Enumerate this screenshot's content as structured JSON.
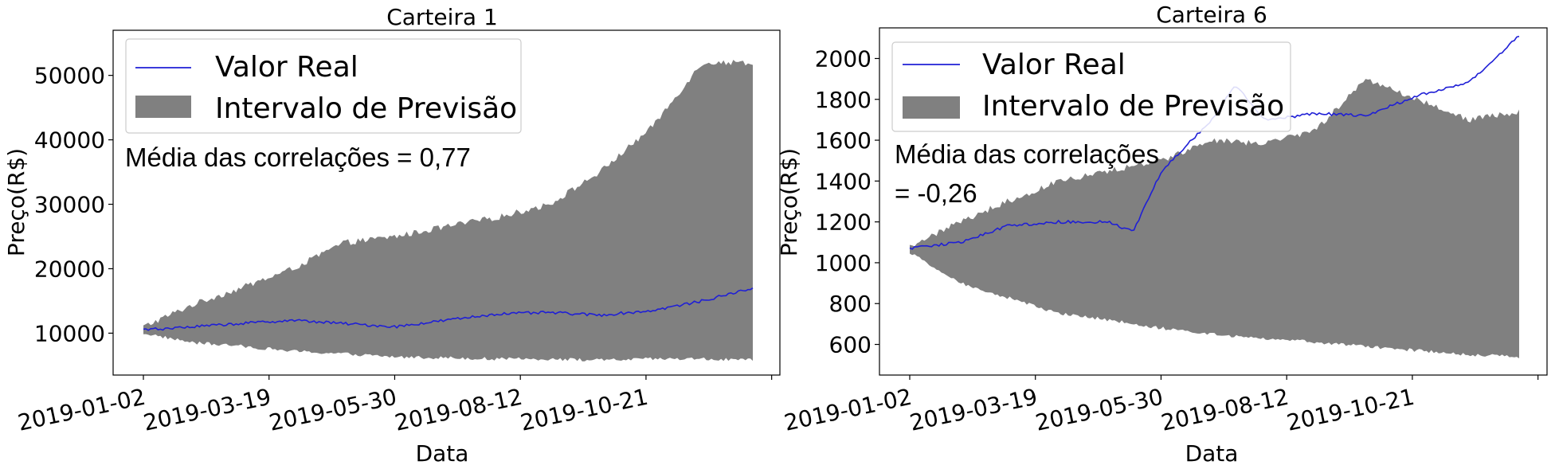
{
  "colors": {
    "band": "#808080",
    "line": "#1f1fd6",
    "axis": "#000000"
  },
  "chart_data": [
    {
      "type": "area",
      "title": "Carteira 1",
      "xlabel": "Data",
      "ylabel": "Preço(R$)",
      "xticks": [
        "2019-01-02",
        "2019-03-19",
        "2019-05-30",
        "2019-08-12",
        "2019-10-21"
      ],
      "yticks": [
        10000,
        20000,
        30000,
        40000,
        50000
      ],
      "ylim": [
        3500,
        57000
      ],
      "x_range": [
        "2019-01-02",
        "2019-12-31"
      ],
      "grid": false,
      "legend_position": "top-left",
      "legend": {
        "line_label": "Valor Real",
        "band_label": "Intervalo de Previsão"
      },
      "annotation": [
        "Média das correlações = 0,77"
      ],
      "series": [
        {
          "name": "Valor Real",
          "x": [
            "2019-01-02",
            "2019-02-01",
            "2019-03-01",
            "2019-04-01",
            "2019-05-01",
            "2019-06-01",
            "2019-07-01",
            "2019-08-01",
            "2019-09-01",
            "2019-10-01",
            "2019-11-01",
            "2019-12-01",
            "2019-12-31"
          ],
          "values": [
            10500,
            11000,
            11500,
            12000,
            11500,
            11000,
            12000,
            13000,
            13200,
            12800,
            13500,
            15000,
            17000
          ]
        },
        {
          "name": "Intervalo de Previsão",
          "x": [
            "2019-01-02",
            "2019-02-01",
            "2019-03-01",
            "2019-04-01",
            "2019-05-01",
            "2019-06-01",
            "2019-07-01",
            "2019-08-01",
            "2019-09-01",
            "2019-10-01",
            "2019-11-01",
            "2019-12-01",
            "2019-12-31"
          ],
          "lower": [
            10000,
            8500,
            8000,
            7200,
            6800,
            6300,
            6200,
            6000,
            6000,
            5800,
            6000,
            6000,
            5800
          ],
          "upper": [
            11000,
            14500,
            17000,
            20000,
            24000,
            25000,
            26500,
            28000,
            30000,
            35000,
            42000,
            52000,
            52000
          ]
        }
      ]
    },
    {
      "type": "area",
      "title": "Carteira 6",
      "xlabel": "Data",
      "ylabel": "Preço(R$)",
      "xticks": [
        "2019-01-02",
        "2019-03-19",
        "2019-05-30",
        "2019-08-12",
        "2019-10-21"
      ],
      "yticks": [
        600,
        800,
        1000,
        1200,
        1400,
        1600,
        1800,
        2000
      ],
      "ylim": [
        450,
        2150
      ],
      "x_range": [
        "2019-01-02",
        "2019-12-31"
      ],
      "grid": false,
      "legend_position": "top-left",
      "legend": {
        "line_label": "Valor Real",
        "band_label": "Intervalo de Previsão"
      },
      "annotation": [
        "Média das correlações",
        "= -0,26"
      ],
      "series": [
        {
          "name": "Valor Real",
          "x": [
            "2019-01-02",
            "2019-02-01",
            "2019-03-01",
            "2019-04-01",
            "2019-05-01",
            "2019-05-15",
            "2019-06-01",
            "2019-07-01",
            "2019-07-15",
            "2019-08-01",
            "2019-09-01",
            "2019-10-01",
            "2019-11-01",
            "2019-12-01",
            "2019-12-31"
          ],
          "values": [
            1070,
            1100,
            1180,
            1200,
            1200,
            1150,
            1450,
            1700,
            1870,
            1700,
            1730,
            1720,
            1820,
            1880,
            2110
          ]
        },
        {
          "name": "Intervalo de Previsão",
          "x": [
            "2019-01-02",
            "2019-02-01",
            "2019-03-01",
            "2019-04-01",
            "2019-05-01",
            "2019-06-01",
            "2019-07-01",
            "2019-08-01",
            "2019-09-01",
            "2019-10-01",
            "2019-11-01",
            "2019-12-01",
            "2019-12-31"
          ],
          "lower": [
            1050,
            900,
            830,
            750,
            720,
            680,
            650,
            630,
            610,
            590,
            570,
            550,
            540
          ],
          "upper": [
            1080,
            1200,
            1300,
            1400,
            1450,
            1500,
            1600,
            1580,
            1650,
            1900,
            1800,
            1700,
            1740
          ]
        }
      ]
    }
  ]
}
